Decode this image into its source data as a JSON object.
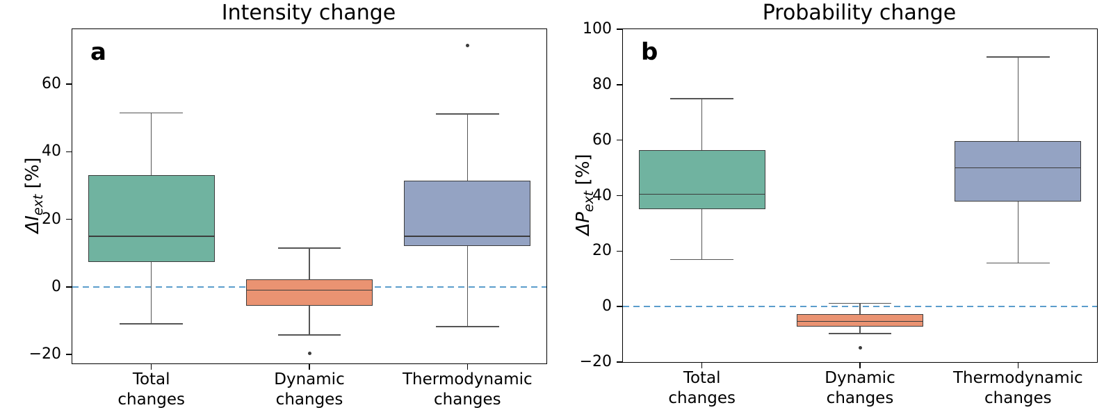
{
  "figure": {
    "background": "#ffffff"
  },
  "style": {
    "box_edge_color": "#3c3c3c",
    "whisker_color": "#555555",
    "median_color": "#3c3c3c",
    "outlier_color": "#3c3c3c",
    "zero_line_color": "#5b9dcc",
    "spine_color": "#000000",
    "box_fill_total": "#70b3a0",
    "box_fill_dynamic": "#ea9372",
    "box_fill_thermodynamic": "#94a3c3"
  },
  "chart_data": [
    {
      "type": "boxplot",
      "panel_label": "a",
      "title": "Intensity change",
      "ylabel": "ΔI_ext [%]",
      "ylabel_parts": {
        "delta": "Δ",
        "symbol": "I",
        "sub": "ext",
        "unit": " [%]"
      },
      "ylim": [
        -22.7,
        76.3
      ],
      "grid": false,
      "legend": false,
      "zero_line": 0,
      "yticks": [
        {
          "value": 60,
          "label": "60"
        },
        {
          "value": 40,
          "label": "40"
        },
        {
          "value": 20,
          "label": "20"
        },
        {
          "value": 0,
          "label": "0"
        },
        {
          "value": -20,
          "label": "−20"
        }
      ],
      "categories": [
        {
          "line1": "Total",
          "line2": "changes"
        },
        {
          "line1": "Dynamic",
          "line2": "changes"
        },
        {
          "line1": "Thermodynamic",
          "line2": "changes"
        }
      ],
      "boxes": [
        {
          "name": "Total changes",
          "fill": "#70b3a0",
          "whisker_low": -11.0,
          "q1": 7.3,
          "median": 15.0,
          "q3": 33.0,
          "whisker_high": 51.5,
          "outliers": []
        },
        {
          "name": "Dynamic changes",
          "fill": "#ea9372",
          "whisker_low": -14.3,
          "q1": -5.7,
          "median": -1.0,
          "q3": 2.3,
          "whisker_high": 11.5,
          "outliers": [
            -19.8
          ]
        },
        {
          "name": "Thermodynamic changes",
          "fill": "#94a3c3",
          "whisker_low": -11.8,
          "q1": 12.0,
          "median": 15.0,
          "q3": 31.5,
          "whisker_high": 51.2,
          "outliers": [
            71.5
          ]
        }
      ]
    },
    {
      "type": "boxplot",
      "panel_label": "b",
      "title": "Probability change",
      "ylabel": "ΔP_ext [%]",
      "ylabel_parts": {
        "delta": "Δ",
        "symbol": "P",
        "sub": "ext",
        "unit": " [%]"
      },
      "ylim": [
        -20,
        100
      ],
      "grid": false,
      "legend": false,
      "zero_line": 0,
      "yticks": [
        {
          "value": 100,
          "label": "100"
        },
        {
          "value": 80,
          "label": "80"
        },
        {
          "value": 60,
          "label": "60"
        },
        {
          "value": 40,
          "label": "40"
        },
        {
          "value": 20,
          "label": "20"
        },
        {
          "value": 0,
          "label": "0"
        },
        {
          "value": -20,
          "label": "−20"
        }
      ],
      "categories": [
        {
          "line1": "Total",
          "line2": "changes"
        },
        {
          "line1": "Dynamic",
          "line2": "changes"
        },
        {
          "line1": "Thermodynamic",
          "line2": "changes"
        }
      ],
      "boxes": [
        {
          "name": "Total changes",
          "fill": "#70b3a0",
          "whisker_low": 17.0,
          "q1": 35.0,
          "median": 40.5,
          "q3": 56.3,
          "whisker_high": 75.0,
          "outliers": []
        },
        {
          "name": "Dynamic changes",
          "fill": "#ea9372",
          "whisker_low": -9.8,
          "q1": -7.3,
          "median": -5.3,
          "q3": -2.7,
          "whisker_high": 1.2,
          "outliers": [
            -14.8
          ]
        },
        {
          "name": "Thermodynamic changes",
          "fill": "#94a3c3",
          "whisker_low": 15.7,
          "q1": 37.8,
          "median": 50.0,
          "q3": 59.6,
          "whisker_high": 90.0,
          "outliers": []
        }
      ]
    }
  ]
}
